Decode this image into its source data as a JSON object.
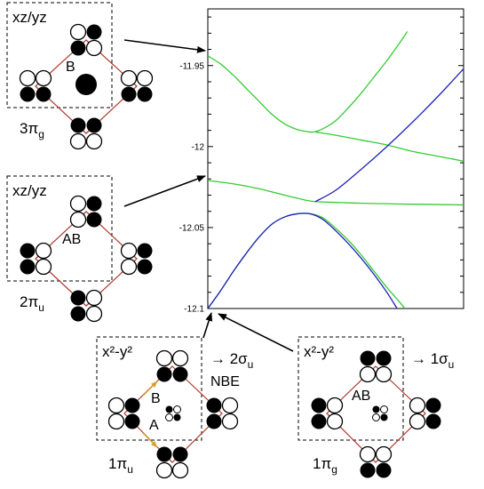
{
  "panels": [
    {
      "orbital": "xz/yz",
      "region": "B",
      "state": "3π",
      "state_sub": "g"
    },
    {
      "orbital": "xz/yz",
      "region": "AB",
      "state": "2π",
      "state_sub": "u"
    },
    {
      "orbital": "x²-y²",
      "region_b": "B",
      "region_a": "A",
      "state": "1π",
      "state_sub": "u",
      "arrow_label": "→ 2σ",
      "arrow_sub": "u",
      "note": "NBE"
    },
    {
      "orbital": "x²-y²",
      "region": "AB",
      "state": "1π",
      "state_sub": "g",
      "arrow_label": "→ 1σ",
      "arrow_sub": "u"
    }
  ],
  "colors": {
    "green": "#33cc33",
    "blue": "#2222bb",
    "lobe": "#000000",
    "frame": "#b03a2e",
    "bond_arrow": "#d9a030"
  },
  "chart_data": {
    "type": "line",
    "title": "",
    "xlabel": "",
    "ylabel": "",
    "ylim": [
      -12.1,
      -11.915
    ],
    "yticks": [
      -11.95,
      -12,
      -12.05,
      -12.1
    ],
    "ytick_labels": [
      "-11.95",
      "-12",
      "-12.05",
      "-12.1"
    ],
    "xlim": [
      0,
      1
    ],
    "series": [
      {
        "color": "green",
        "points": [
          [
            0,
            -11.944
          ],
          [
            0.05,
            -11.949
          ],
          [
            0.1,
            -11.956
          ],
          [
            0.15,
            -11.964
          ],
          [
            0.2,
            -11.972
          ],
          [
            0.25,
            -11.98
          ],
          [
            0.3,
            -11.986
          ],
          [
            0.35,
            -11.9895
          ],
          [
            0.4,
            -11.991
          ],
          [
            0.42,
            -11.9908
          ],
          [
            0.45,
            -11.989
          ],
          [
            0.5,
            -11.984
          ],
          [
            0.55,
            -11.976
          ],
          [
            0.6,
            -11.967
          ],
          [
            0.65,
            -11.957
          ],
          [
            0.7,
            -11.947
          ],
          [
            0.75,
            -11.936
          ],
          [
            0.78,
            -11.929
          ]
        ]
      },
      {
        "color": "green",
        "points": [
          [
            0,
            -12.021
          ],
          [
            0.1,
            -12.023
          ],
          [
            0.2,
            -12.026
          ],
          [
            0.3,
            -12.03
          ],
          [
            0.38,
            -12.033
          ],
          [
            0.42,
            -12.034
          ],
          [
            0.5,
            -12.0345
          ],
          [
            0.6,
            -12.035
          ],
          [
            0.7,
            -12.0353
          ],
          [
            0.8,
            -12.0356
          ],
          [
            0.9,
            -12.0358
          ],
          [
            1.0,
            -12.036
          ]
        ]
      },
      {
        "color": "green",
        "points": [
          [
            0.42,
            -11.991
          ],
          [
            0.5,
            -11.993
          ],
          [
            0.6,
            -11.996
          ],
          [
            0.7,
            -11.999
          ],
          [
            0.8,
            -12.003
          ],
          [
            0.9,
            -12.006
          ],
          [
            1.0,
            -12.009
          ]
        ]
      },
      {
        "color": "green",
        "points": [
          [
            0,
            -12.1
          ],
          [
            0.05,
            -12.089
          ],
          [
            0.1,
            -12.077
          ],
          [
            0.15,
            -12.066
          ],
          [
            0.2,
            -12.056
          ],
          [
            0.25,
            -12.048
          ],
          [
            0.3,
            -12.0435
          ],
          [
            0.35,
            -12.0415
          ],
          [
            0.4,
            -12.0415
          ],
          [
            0.45,
            -12.044
          ],
          [
            0.5,
            -12.0505
          ],
          [
            0.55,
            -12.058
          ],
          [
            0.6,
            -12.067
          ],
          [
            0.65,
            -12.077
          ],
          [
            0.7,
            -12.087
          ],
          [
            0.75,
            -12.096
          ],
          [
            0.77,
            -12.1
          ]
        ]
      },
      {
        "color": "blue",
        "points": [
          [
            0,
            -12.1
          ],
          [
            0.05,
            -12.089
          ],
          [
            0.1,
            -12.077
          ],
          [
            0.15,
            -12.066
          ],
          [
            0.2,
            -12.056
          ],
          [
            0.25,
            -12.048
          ],
          [
            0.3,
            -12.0435
          ],
          [
            0.35,
            -12.0415
          ],
          [
            0.4,
            -12.0415
          ],
          [
            0.45,
            -12.045
          ],
          [
            0.5,
            -12.052
          ],
          [
            0.55,
            -12.06
          ],
          [
            0.6,
            -12.069
          ],
          [
            0.65,
            -12.079
          ],
          [
            0.7,
            -12.09
          ],
          [
            0.74,
            -12.1
          ]
        ]
      },
      {
        "color": "blue",
        "points": [
          [
            0.42,
            -12.034
          ],
          [
            0.5,
            -12.027
          ],
          [
            0.6,
            -12.014
          ],
          [
            0.7,
            -12.0
          ],
          [
            0.8,
            -11.985
          ],
          [
            0.9,
            -11.969
          ],
          [
            1.0,
            -11.952
          ]
        ]
      }
    ]
  }
}
